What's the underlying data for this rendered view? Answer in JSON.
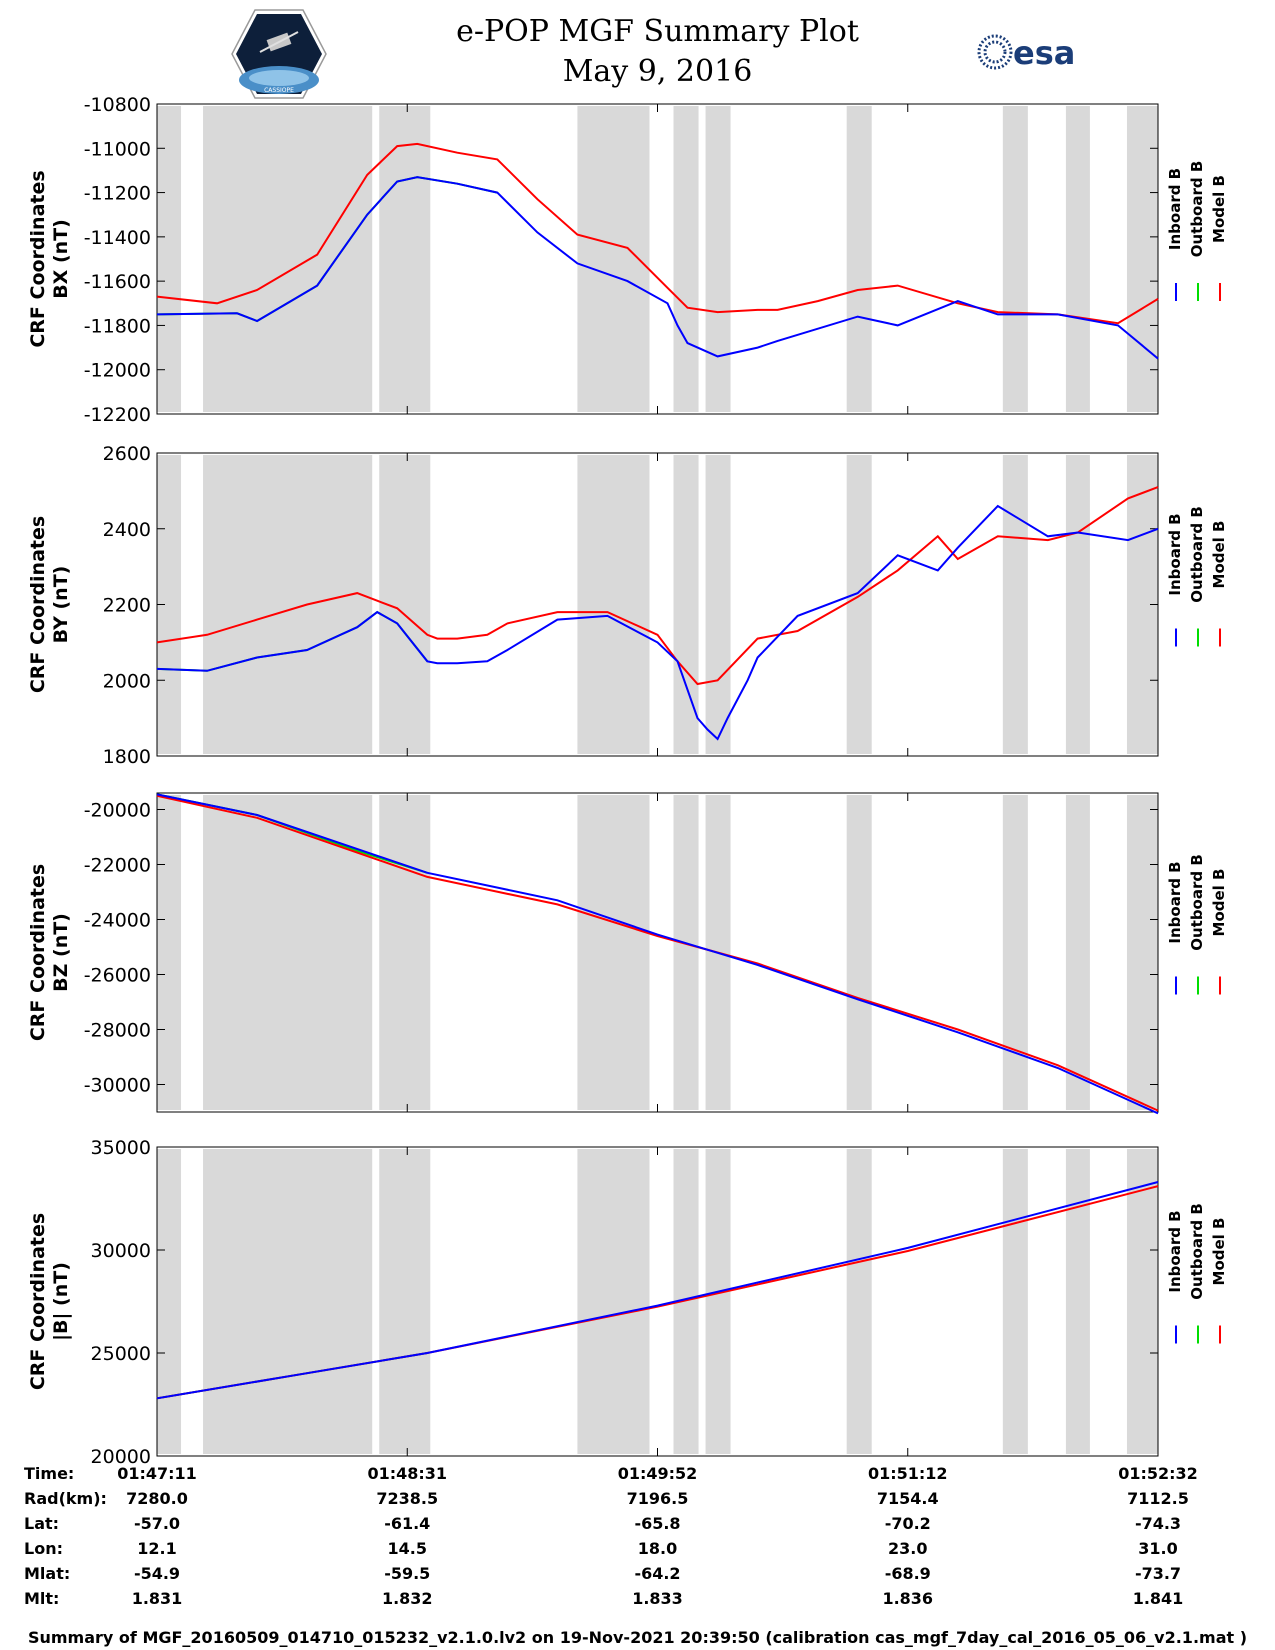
{
  "header": {
    "title": "e-POP MGF Summary Plot",
    "date": "May 9, 2016",
    "mission_logo_text": "CASSIOPE",
    "agency_logo_text": "esa"
  },
  "colors": {
    "inboard": "#0000ff",
    "outboard": "#00dd00",
    "model": "#ff0000",
    "gap": "#d9d9d9"
  },
  "chart_data": [
    {
      "type": "line",
      "ylabel_line1": "CRF Coordinates",
      "ylabel_line2": "BX (nT)",
      "ylim": [
        -12200,
        -10800
      ],
      "yticks": [
        "-10800",
        "-11000",
        "-11200",
        "-11400",
        "-11600",
        "-11800",
        "-12000",
        "-12200"
      ],
      "legend": [
        "Inboard B",
        "Outboard B",
        "Model B"
      ],
      "series": [
        {
          "name": "Inboard B",
          "t": [
            0,
            8,
            10,
            16,
            21,
            24,
            26,
            30,
            34,
            38,
            42,
            47,
            51,
            52,
            53,
            56,
            60,
            62,
            70,
            74,
            80,
            84,
            90,
            96,
            100
          ],
          "values": [
            -11750,
            -11745,
            -11780,
            -11620,
            -11300,
            -11150,
            -11130,
            -11160,
            -11200,
            -11380,
            -11520,
            -11600,
            -11700,
            -11800,
            -11880,
            -11940,
            -11900,
            -11870,
            -11760,
            -11800,
            -11690,
            -11750,
            -11750,
            -11800,
            -11950
          ]
        },
        {
          "name": "Outboard B",
          "t": [
            0,
            8,
            10,
            16,
            21,
            24,
            26,
            30,
            34
          ],
          "values": [
            -11750,
            -11745,
            -11780,
            -11620,
            -11300,
            -11150,
            -11130,
            -11160,
            -11200
          ]
        },
        {
          "name": "Model B",
          "t": [
            0,
            6,
            10,
            16,
            21,
            24,
            26,
            30,
            34,
            38,
            42,
            47,
            51,
            53,
            56,
            60,
            62,
            66,
            70,
            74,
            80,
            84,
            90,
            96,
            100
          ],
          "values": [
            -11670,
            -11700,
            -11640,
            -11480,
            -11120,
            -10990,
            -10980,
            -11020,
            -11050,
            -11230,
            -11390,
            -11450,
            -11630,
            -11720,
            -11740,
            -11730,
            -11730,
            -11690,
            -11640,
            -11620,
            -11700,
            -11740,
            -11750,
            -11790,
            -11680
          ]
        }
      ]
    },
    {
      "type": "line",
      "ylabel_line1": "CRF Coordinates",
      "ylabel_line2": "BY (nT)",
      "ylim": [
        1800,
        2600
      ],
      "yticks": [
        "2600",
        "2400",
        "2200",
        "2000",
        "1800"
      ],
      "legend": [
        "Inboard B",
        "Outboard B",
        "Model B"
      ],
      "series": [
        {
          "name": "Inboard B",
          "t": [
            0,
            5,
            10,
            15,
            20,
            22,
            24,
            27,
            28,
            30,
            33,
            35,
            40,
            45,
            50,
            52,
            54,
            55,
            56,
            57,
            59,
            60,
            64,
            70,
            74,
            78,
            80,
            84,
            89,
            92,
            97,
            98,
            100
          ],
          "values": [
            2030,
            2025,
            2060,
            2080,
            2140,
            2180,
            2150,
            2050,
            2045,
            2045,
            2050,
            2080,
            2160,
            2170,
            2100,
            2050,
            1900,
            1870,
            1845,
            1900,
            2000,
            2060,
            2170,
            2230,
            2330,
            2290,
            2350,
            2460,
            2380,
            2390,
            2370,
            2380,
            2400
          ]
        },
        {
          "name": "Outboard B",
          "t": [
            0,
            5,
            10,
            15,
            20,
            22,
            24,
            27
          ],
          "values": [
            2030,
            2025,
            2060,
            2080,
            2140,
            2180,
            2150,
            2050
          ]
        },
        {
          "name": "Model B",
          "t": [
            0,
            5,
            10,
            15,
            20,
            22,
            24,
            27,
            28,
            30,
            33,
            35,
            40,
            45,
            50,
            52,
            54,
            56,
            60,
            64,
            70,
            74,
            78,
            80,
            84,
            89,
            92,
            97,
            100
          ],
          "values": [
            2100,
            2120,
            2160,
            2200,
            2230,
            2210,
            2190,
            2120,
            2110,
            2110,
            2120,
            2150,
            2180,
            2180,
            2120,
            2050,
            1990,
            2000,
            2110,
            2130,
            2220,
            2290,
            2380,
            2320,
            2380,
            2370,
            2390,
            2480,
            2510
          ]
        }
      ]
    },
    {
      "type": "line",
      "ylabel_line1": "CRF Coordinates",
      "ylabel_line2": "BZ (nT)",
      "ylim": [
        -31000,
        -19400
      ],
      "yticks": [
        "-20000",
        "-22000",
        "-24000",
        "-26000",
        "-28000",
        "-30000"
      ],
      "legend": [
        "Inboard B",
        "Outboard B",
        "Model B"
      ],
      "series": [
        {
          "name": "Inboard B",
          "t": [
            0,
            10,
            27,
            40,
            50,
            60,
            70,
            80,
            90,
            100
          ],
          "values": [
            -19450,
            -20200,
            -22300,
            -23300,
            -24550,
            -25650,
            -26900,
            -28100,
            -29400,
            -31050
          ]
        },
        {
          "name": "Outboard B",
          "t": [
            0,
            10,
            20,
            27
          ],
          "values": [
            -19450,
            -20200,
            -21500,
            -22300
          ]
        },
        {
          "name": "Model B",
          "t": [
            0,
            10,
            27,
            40,
            50,
            60,
            70,
            80,
            90,
            100
          ],
          "values": [
            -19500,
            -20300,
            -22450,
            -23450,
            -24600,
            -25600,
            -26850,
            -28000,
            -29300,
            -30950
          ]
        }
      ]
    },
    {
      "type": "line",
      "ylabel_line1": "CRF Coordinates",
      "ylabel_line2": "|B| (nT)",
      "ylim": [
        20000,
        35000
      ],
      "yticks": [
        "35000",
        "30000",
        "25000",
        "20000"
      ],
      "legend": [
        "Inboard B",
        "Outboard B",
        "Model B"
      ],
      "series": [
        {
          "name": "Inboard B",
          "t": [
            0,
            13.5,
            27,
            50,
            75,
            100
          ],
          "values": [
            22800,
            23900,
            25000,
            27300,
            30100,
            33300
          ]
        },
        {
          "name": "Outboard B",
          "t": [
            0,
            13.5,
            27
          ],
          "values": [
            22800,
            23900,
            25000
          ]
        },
        {
          "name": "Model B",
          "t": [
            0,
            13.5,
            27,
            50,
            75,
            100
          ],
          "values": [
            22800,
            23900,
            25000,
            27250,
            29950,
            33100
          ]
        }
      ]
    }
  ],
  "gaps": [
    [
      0,
      2.4
    ],
    [
      4.6,
      21.5
    ],
    [
      22.2,
      27.3
    ],
    [
      42,
      49.2
    ],
    [
      51.6,
      54.1
    ],
    [
      54.8,
      57.3
    ],
    [
      68.9,
      71.4
    ],
    [
      84.5,
      87
    ],
    [
      90.8,
      93.2
    ],
    [
      96.9,
      100
    ]
  ],
  "info": {
    "labels": [
      "Time:",
      "Rad(km):",
      "Lat:",
      "Lon:",
      "Mlat:",
      "Mlt:"
    ],
    "columns": [
      [
        "01:47:11",
        "7280.0",
        "-57.0",
        "12.1",
        "-54.9",
        "1.831"
      ],
      [
        "01:48:31",
        "7238.5",
        "-61.4",
        "14.5",
        "-59.5",
        "1.832"
      ],
      [
        "01:49:52",
        "7196.5",
        "-65.8",
        "18.0",
        "-64.2",
        "1.833"
      ],
      [
        "01:51:12",
        "7154.4",
        "-70.2",
        "23.0",
        "-68.9",
        "1.836"
      ],
      [
        "01:52:32",
        "7112.5",
        "-74.3",
        "31.0",
        "-73.7",
        "1.841"
      ]
    ]
  },
  "footer": "Summary of MGF_20160509_014710_015232_v2.1.0.lv2 on 19-Nov-2021 20:39:50 (calibration cas_mgf_7day_cal_2016_05_06_v2.1.mat )"
}
